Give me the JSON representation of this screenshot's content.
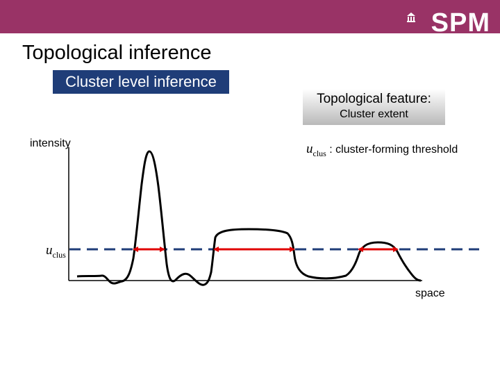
{
  "header": {
    "brand": "SPM",
    "bar_color": "#993366",
    "logo_icon": "building-icon"
  },
  "slide": {
    "title": "Topological inference",
    "subtitle": "Cluster level inference",
    "subtitle_bg": "#1f3d78"
  },
  "feature": {
    "title": "Topological feature:",
    "value": "Cluster extent"
  },
  "threshold": {
    "symbol": "u",
    "subscript": "clus",
    "description": " : cluster-forming threshold",
    "line_color": "#1f3d78"
  },
  "axes": {
    "ylabel": "intensity",
    "xlabel": "space"
  },
  "clusters": {
    "arrow_color": "#e00000",
    "count": 3
  }
}
